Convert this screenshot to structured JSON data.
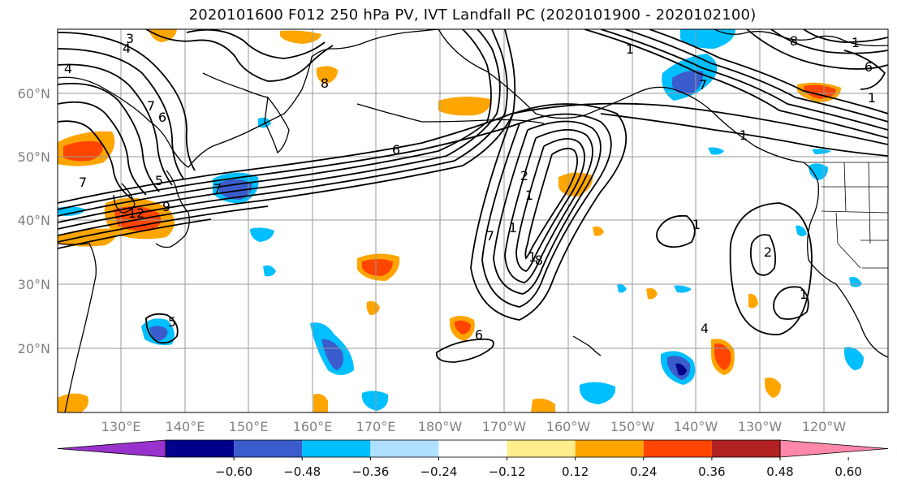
{
  "title": "2020101600 F012 250 hPa PV, IVT Landfall PC (2020101900 - 2020102100)",
  "lat_labels": [
    "60°N",
    "50°N",
    "40°N",
    "30°N",
    "20°N"
  ],
  "lon_labels": [
    "130°E",
    "140°E",
    "150°E",
    "160°E",
    "170°E",
    "180°W",
    "170°W",
    "160°W",
    "150°W",
    "140°W",
    "130°W",
    "120°W"
  ],
  "contour_labels": [
    "3",
    "4",
    "4",
    "7",
    "6",
    "5",
    "7",
    "9",
    "12",
    "7",
    "8",
    "6",
    "7",
    "1",
    "1",
    "1",
    "2",
    "8",
    "1",
    "1",
    "2",
    "1",
    "6",
    "5",
    "7",
    "1",
    "6",
    "8",
    "1",
    "1",
    "4"
  ],
  "colorbar": {
    "ticks": [
      "−0.60",
      "−0.48",
      "−0.36",
      "−0.24",
      "−0.12",
      "0.12",
      "0.24",
      "0.36",
      "0.48",
      "0.60"
    ],
    "colors": [
      "#9932cc",
      "#00008b",
      "#3a5ccc",
      "#00bfff",
      "#b0e0ff",
      "#ffffff",
      "#ffec8b",
      "#ffa500",
      "#ff4500",
      "#b22222",
      "#ff88aa"
    ]
  }
}
